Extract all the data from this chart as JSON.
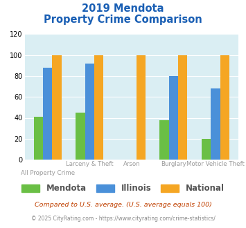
{
  "title_line1": "2019 Mendota",
  "title_line2": "Property Crime Comparison",
  "mendota": [
    41,
    45,
    0,
    38,
    20
  ],
  "illinois": [
    88,
    92,
    0,
    80,
    68
  ],
  "national": [
    100,
    100,
    100,
    100,
    100
  ],
  "mendota_color": "#6abf45",
  "illinois_color": "#4a90d9",
  "national_color": "#f5a623",
  "ylim": [
    0,
    120
  ],
  "yticks": [
    0,
    20,
    40,
    60,
    80,
    100,
    120
  ],
  "bg_color": "#daeef3",
  "legend_labels": [
    "Mendota",
    "Illinois",
    "National"
  ],
  "x_top_labels": [
    "",
    "Larceny & Theft",
    "Arson",
    "Burglary",
    "Motor Vehicle Theft"
  ],
  "x_bottom_labels": [
    "All Property Crime",
    "",
    "",
    "",
    ""
  ],
  "footnote1": "Compared to U.S. average. (U.S. average equals 100)",
  "footnote2": "© 2025 CityRating.com - https://www.cityrating.com/crime-statistics/",
  "title_color": "#1a5fb4",
  "footnote1_color": "#c04000",
  "footnote2_color": "#888888"
}
